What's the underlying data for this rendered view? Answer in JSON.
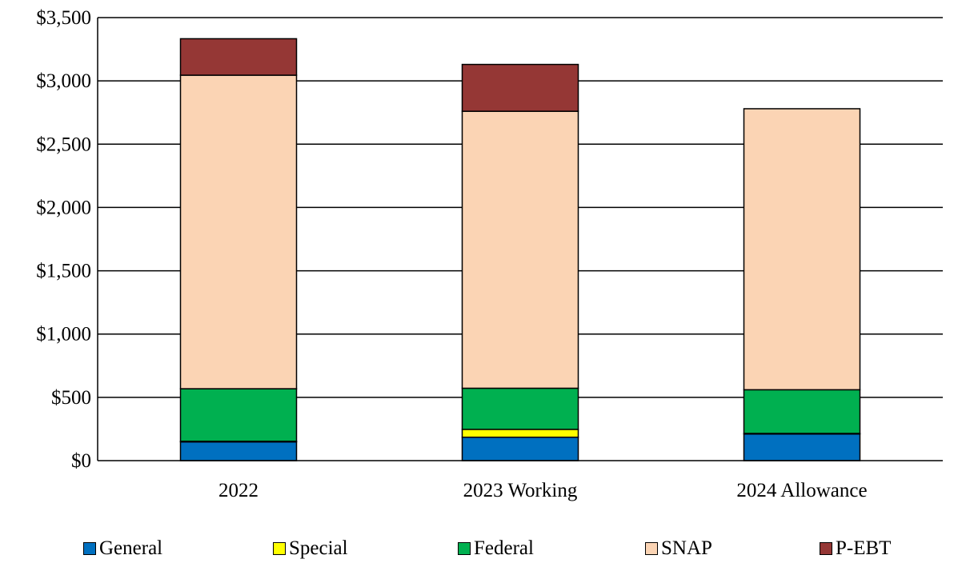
{
  "chart_data": {
    "type": "bar",
    "stacked": true,
    "categories": [
      "2022",
      "2023 Working",
      "2024 Allowance"
    ],
    "series": [
      {
        "name": "General",
        "color": "#0070C0",
        "values": [
          148,
          185,
          210
        ]
      },
      {
        "name": "Special",
        "color": "#FFFF00",
        "values": [
          5,
          62,
          5
        ]
      },
      {
        "name": "Federal",
        "color": "#00B050",
        "values": [
          415,
          325,
          345
        ]
      },
      {
        "name": "SNAP",
        "color": "#FBD4B4",
        "values": [
          2477,
          2188,
          2220
        ]
      },
      {
        "name": "P-EBT",
        "color": "#953735",
        "values": [
          288,
          370,
          0
        ]
      }
    ],
    "y_ticks": [
      "$0",
      "$500",
      "$1,000",
      "$1,500",
      "$2,000",
      "$2,500",
      "$3,000",
      "$3,500"
    ],
    "ylim": [
      0,
      3500
    ],
    "grid": true,
    "legend_position": "bottom"
  }
}
